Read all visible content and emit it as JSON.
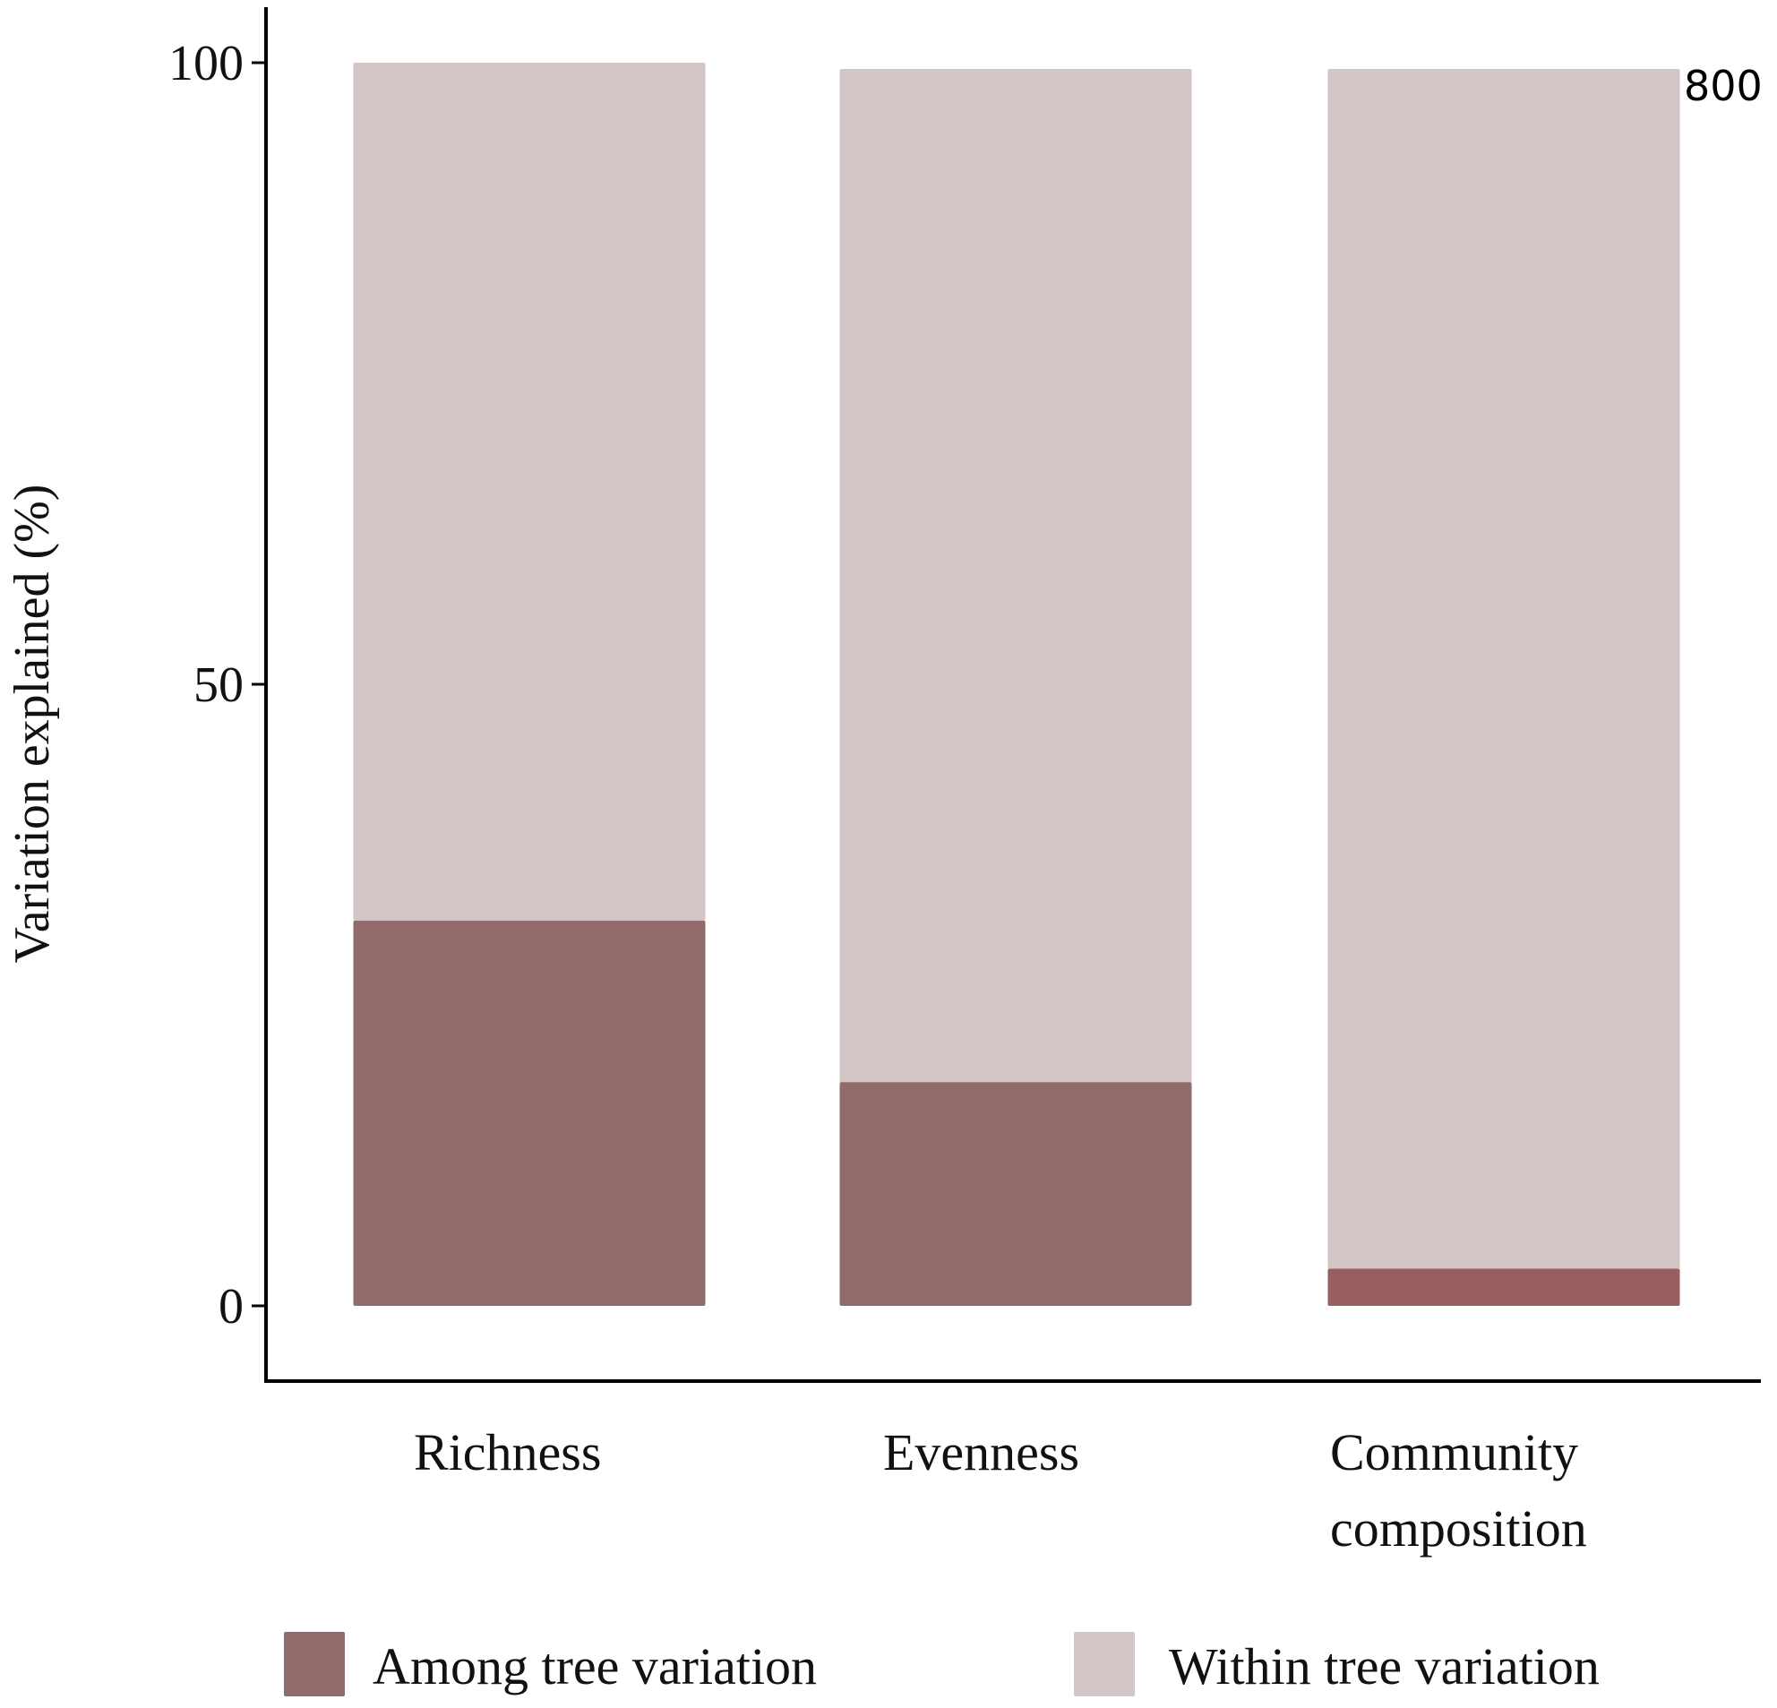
{
  "chart_data": {
    "type": "bar",
    "stacked": true,
    "categories": [
      [
        "Richness"
      ],
      [
        "Evenness"
      ],
      [
        "Community",
        "composition"
      ]
    ],
    "series": [
      {
        "name": "Among tree variation",
        "values": [
          31,
          18,
          3
        ],
        "color": "#916b6b"
      },
      {
        "name": "Within tree variation",
        "values": [
          69,
          81.5,
          96.5
        ],
        "color": "#d3c5c6"
      }
    ],
    "ylabel": "Variation explained (%)",
    "yticks": [
      0,
      50,
      100
    ],
    "ylim": [
      -6,
      104.5
    ],
    "grid": false,
    "legend_position": "bottom",
    "annotation": "800",
    "accent_color_community_among": "#985f5f"
  }
}
